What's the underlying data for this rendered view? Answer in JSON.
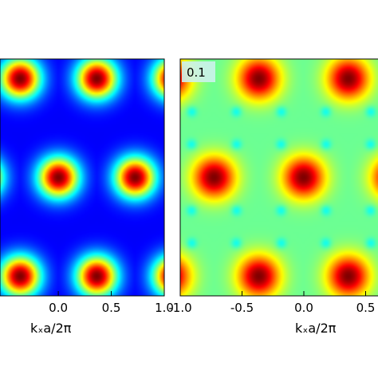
{
  "chart_data": [
    {
      "type": "heatmap",
      "panel_label": "",
      "xlabel": "kₓa/2π",
      "xlim": [
        -0.55,
        1.0
      ],
      "xticks": [
        0.0,
        0.5,
        1.0
      ],
      "xtick_labels": [
        "0.0",
        "0.5",
        "1.0"
      ],
      "colormap": "jet",
      "value_range": [
        0,
        1
      ],
      "pattern": "hexagonal lattice of maxima",
      "lattice_period_x": 0.73,
      "row_positions_y": [
        0.08,
        0.5,
        0.92
      ],
      "maxima_x_even_rows": [
        0.0,
        0.73
      ],
      "maxima_x_odd_rows": [
        -0.365,
        0.365,
        1.095
      ],
      "background_level": "low (blue)",
      "minima_shape": "dark blue triangles between maxima"
    },
    {
      "type": "heatmap",
      "panel_label": "0.1",
      "xlabel": "kₓa/2π",
      "xlim": [
        -1.0,
        0.6
      ],
      "xticks": [
        -1.0,
        -0.5,
        0.0,
        0.5
      ],
      "xtick_labels": [
        "-1.0",
        "-0.5",
        "0.0",
        "0.5"
      ],
      "colormap": "jet",
      "value_range": [
        0,
        1
      ],
      "pattern": "hexagonal lattice of maxima",
      "lattice_period_x": 0.73,
      "row_positions_y": [
        0.08,
        0.5,
        0.92
      ],
      "maxima_x_even_rows": [
        -0.73,
        0.0,
        0.73
      ],
      "maxima_x_odd_rows": [
        -1.095,
        -0.365,
        0.365
      ],
      "background_level": "medium (green)",
      "minima_shape": "small cyan spots between maxima"
    }
  ]
}
